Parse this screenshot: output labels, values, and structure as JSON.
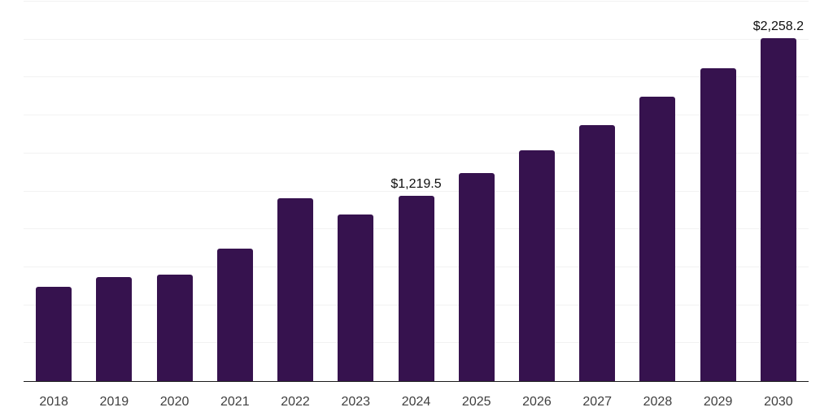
{
  "chart_data": {
    "type": "bar",
    "title": "",
    "xlabel": "",
    "ylabel": "",
    "categories": [
      "2018",
      "2019",
      "2020",
      "2021",
      "2022",
      "2023",
      "2024",
      "2025",
      "2026",
      "2027",
      "2028",
      "2029",
      "2030"
    ],
    "values": [
      619,
      686,
      702,
      872,
      1207,
      1096,
      1219.5,
      1369,
      1519,
      1688,
      1872,
      2062,
      2258.2
    ],
    "data_labels": [
      "",
      "",
      "",
      "",
      "",
      "",
      "$1,219.5",
      "",
      "",
      "",
      "",
      "",
      "$2,258.2"
    ],
    "ylim": [
      0,
      2500
    ],
    "gridline_step": 250,
    "grid": true,
    "legend": false,
    "colors": {
      "bar": "#36124E",
      "background": "#ffffff",
      "gridline": "#f2f2f2",
      "axis_line": "#1a1a1a",
      "tick_label": "#3f3f3f",
      "data_label": "#0f0f0f"
    }
  }
}
